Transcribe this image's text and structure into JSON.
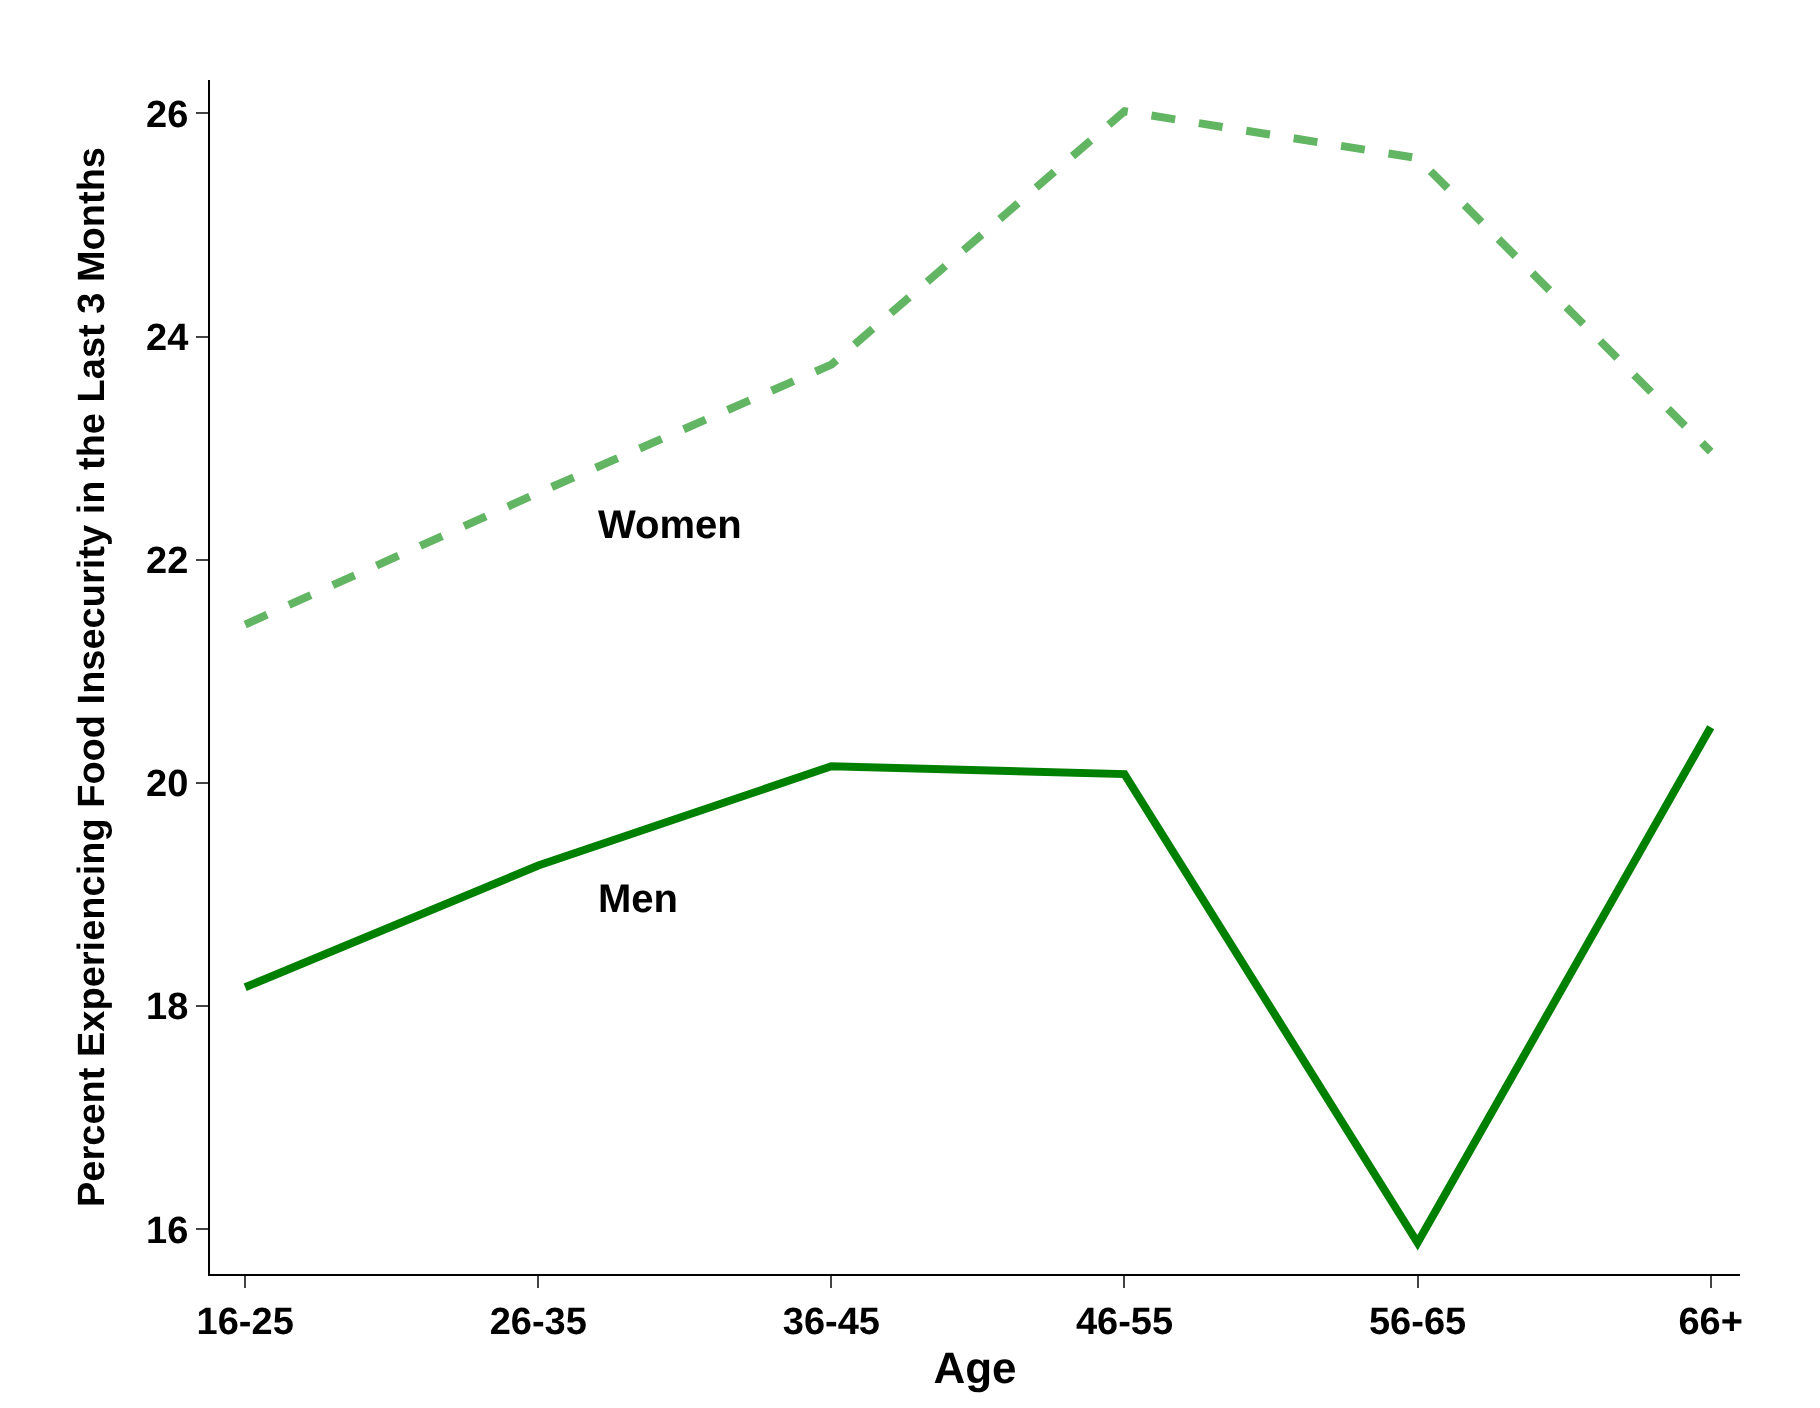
{
  "chart_data": {
    "type": "line",
    "xlabel": "Age",
    "ylabel": "Percent Experiencing Food Insecurity in the Last 3 Months",
    "categories": [
      "16-25",
      "26-35",
      "36-45",
      "46-55",
      "56-65",
      "66+"
    ],
    "series": [
      {
        "name": "Women",
        "color": "#62b562",
        "line_style": "dashed",
        "values": [
          21.42,
          22.6,
          23.75,
          26.02,
          25.6,
          22.97
        ]
      },
      {
        "name": "Men",
        "color": "#008000",
        "line_style": "solid",
        "values": [
          18.17,
          19.26,
          20.15,
          20.08,
          15.88,
          20.5
        ]
      }
    ],
    "ylim": [
      15.6,
      26.3
    ],
    "yticks": [
      16,
      18,
      20,
      22,
      24,
      26
    ],
    "legend": false,
    "marker": "none"
  }
}
